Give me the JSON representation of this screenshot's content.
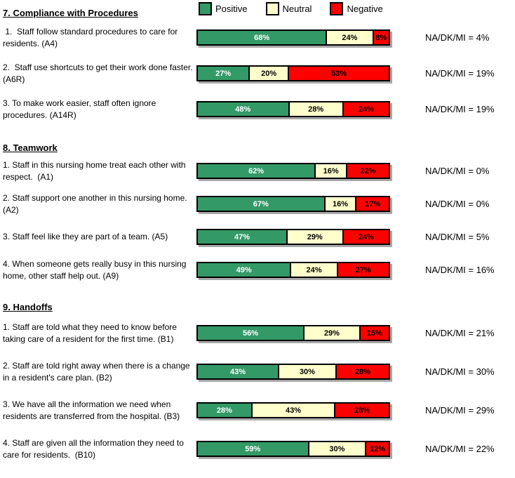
{
  "legend": {
    "items": [
      {
        "name": "positive",
        "label": "Positive",
        "color": "#339966"
      },
      {
        "name": "neutral",
        "label": "Neutral",
        "color": "#FFFFCC"
      },
      {
        "name": "negative",
        "label": "Negative",
        "color": "#FF0000"
      }
    ]
  },
  "sections": [
    {
      "title": "7. Compliance with Procedures",
      "items": [
        {
          "question": " 1.  Staff follow standard procedures to care for residents. (A4)",
          "segments": [
            {
              "name": "positive",
              "pct": 68,
              "label": "68%"
            },
            {
              "name": "neutral",
              "pct": 24,
              "label": "24%"
            },
            {
              "name": "negative",
              "pct": 8,
              "label": "8%"
            }
          ],
          "na": "NA/DK/MI = 4%"
        },
        {
          "question": "2.  Staff use shortcuts to get their work done faster. (A6R)",
          "segments": [
            {
              "name": "positive",
              "pct": 27,
              "label": "27%"
            },
            {
              "name": "neutral",
              "pct": 20,
              "label": "20%"
            },
            {
              "name": "negative",
              "pct": 53,
              "label": "53%"
            }
          ],
          "na": "NA/DK/MI = 19%"
        },
        {
          "question": "3. To make work easier, staff often ignore procedures. (A14R)",
          "segments": [
            {
              "name": "positive",
              "pct": 48,
              "label": "48%"
            },
            {
              "name": "neutral",
              "pct": 28,
              "label": "28%"
            },
            {
              "name": "negative",
              "pct": 24,
              "label": "24%"
            }
          ],
          "na": "NA/DK/MI = 19%"
        }
      ]
    },
    {
      "title": "8. Teamwork",
      "items": [
        {
          "question": "1. Staff in this nursing home treat each other with respect.  (A1)",
          "segments": [
            {
              "name": "positive",
              "pct": 62,
              "label": "62%"
            },
            {
              "name": "neutral",
              "pct": 16,
              "label": "16%"
            },
            {
              "name": "negative",
              "pct": 22,
              "label": "22%"
            }
          ],
          "na": "NA/DK/MI = 0%"
        },
        {
          "question": "2. Staff support one another in this nursing home.  (A2)",
          "segments": [
            {
              "name": "positive",
              "pct": 67,
              "label": "67%"
            },
            {
              "name": "neutral",
              "pct": 16,
              "label": "16%"
            },
            {
              "name": "negative",
              "pct": 17,
              "label": "17%"
            }
          ],
          "na": "NA/DK/MI = 0%"
        },
        {
          "question": "3. Staff feel like they are part of a team. (A5)",
          "segments": [
            {
              "name": "positive",
              "pct": 47,
              "label": "47%"
            },
            {
              "name": "neutral",
              "pct": 29,
              "label": "29%"
            },
            {
              "name": "negative",
              "pct": 24,
              "label": "24%"
            }
          ],
          "na": "NA/DK/MI = 5%"
        },
        {
          "question": "4. When someone gets really busy in this nursing home, other staff help out. (A9)",
          "segments": [
            {
              "name": "positive",
              "pct": 49,
              "label": "49%"
            },
            {
              "name": "neutral",
              "pct": 24,
              "label": "24%"
            },
            {
              "name": "negative",
              "pct": 27,
              "label": "27%"
            }
          ],
          "na": "NA/DK/MI = 16%"
        }
      ]
    },
    {
      "title": "9. Handoffs",
      "items": [
        {
          "question": "1. Staff are told what they need to know before taking care of a resident for the first time. (B1)",
          "segments": [
            {
              "name": "positive",
              "pct": 56,
              "label": "56%"
            },
            {
              "name": "neutral",
              "pct": 29,
              "label": "29%"
            },
            {
              "name": "negative",
              "pct": 15,
              "label": "15%"
            }
          ],
          "na": "NA/DK/MI = 21%"
        },
        {
          "question": "2. Staff are told right away when there is a change in a resident's care plan. (B2)",
          "segments": [
            {
              "name": "positive",
              "pct": 43,
              "label": "43%"
            },
            {
              "name": "neutral",
              "pct": 30,
              "label": "30%"
            },
            {
              "name": "negative",
              "pct": 28,
              "label": "28%"
            }
          ],
          "na": "NA/DK/MI = 30%"
        },
        {
          "question": "3. We have all the information we need when residents are transferred from the hospital. (B3)",
          "segments": [
            {
              "name": "positive",
              "pct": 28,
              "label": "28%"
            },
            {
              "name": "neutral",
              "pct": 43,
              "label": "43%"
            },
            {
              "name": "negative",
              "pct": 28,
              "label": "28%"
            }
          ],
          "na": "NA/DK/MI = 29%"
        },
        {
          "question": "4. Staff are given all the information they need to care for residents.  (B10)",
          "segments": [
            {
              "name": "positive",
              "pct": 59,
              "label": "59%"
            },
            {
              "name": "neutral",
              "pct": 30,
              "label": "30%"
            },
            {
              "name": "negative",
              "pct": 12,
              "label": "12%"
            }
          ],
          "na": "NA/DK/MI = 22%"
        }
      ]
    }
  ],
  "chart_data": {
    "type": "bar",
    "stacked": true,
    "orientation": "horizontal",
    "value_unit": "%",
    "xlim": [
      0,
      100
    ],
    "grid": false,
    "legend_entries": [
      "Positive",
      "Neutral",
      "Negative"
    ],
    "legend_position": "top",
    "colors": {
      "Positive": "#339966",
      "Neutral": "#FFFFCC",
      "Negative": "#FF0000"
    },
    "groups": [
      {
        "title": "7. Compliance with Procedures",
        "categories": [
          "Staff follow standard procedures to care for residents. (A4)",
          "Staff use shortcuts to get their work done faster. (A6R)",
          "To make work easier, staff often ignore procedures. (A14R)"
        ],
        "series": [
          {
            "name": "Positive",
            "values": [
              68,
              27,
              48
            ]
          },
          {
            "name": "Neutral",
            "values": [
              24,
              20,
              28
            ]
          },
          {
            "name": "Negative",
            "values": [
              8,
              53,
              24
            ]
          }
        ],
        "na_dk_mi": [
          4,
          19,
          19
        ]
      },
      {
        "title": "8. Teamwork",
        "categories": [
          "Staff in this nursing home treat each other with respect. (A1)",
          "Staff support one another in this nursing home. (A2)",
          "Staff feel like they are part of a team. (A5)",
          "When someone gets really busy in this nursing home, other staff help out. (A9)"
        ],
        "series": [
          {
            "name": "Positive",
            "values": [
              62,
              67,
              47,
              49
            ]
          },
          {
            "name": "Neutral",
            "values": [
              16,
              16,
              29,
              24
            ]
          },
          {
            "name": "Negative",
            "values": [
              22,
              17,
              24,
              27
            ]
          }
        ],
        "na_dk_mi": [
          0,
          0,
          5,
          16
        ]
      },
      {
        "title": "9. Handoffs",
        "categories": [
          "Staff are told what they need to know before taking care of a resident for the first time. (B1)",
          "Staff are told right away when there is a change in a resident's care plan. (B2)",
          "We have all the information we need when residents are transferred from the hospital. (B3)",
          "Staff are given all the information they need to care for residents. (B10)"
        ],
        "series": [
          {
            "name": "Positive",
            "values": [
              56,
              43,
              28,
              59
            ]
          },
          {
            "name": "Neutral",
            "values": [
              29,
              30,
              43,
              30
            ]
          },
          {
            "name": "Negative",
            "values": [
              15,
              28,
              28,
              12
            ]
          }
        ],
        "na_dk_mi": [
          21,
          30,
          29,
          22
        ]
      }
    ]
  }
}
